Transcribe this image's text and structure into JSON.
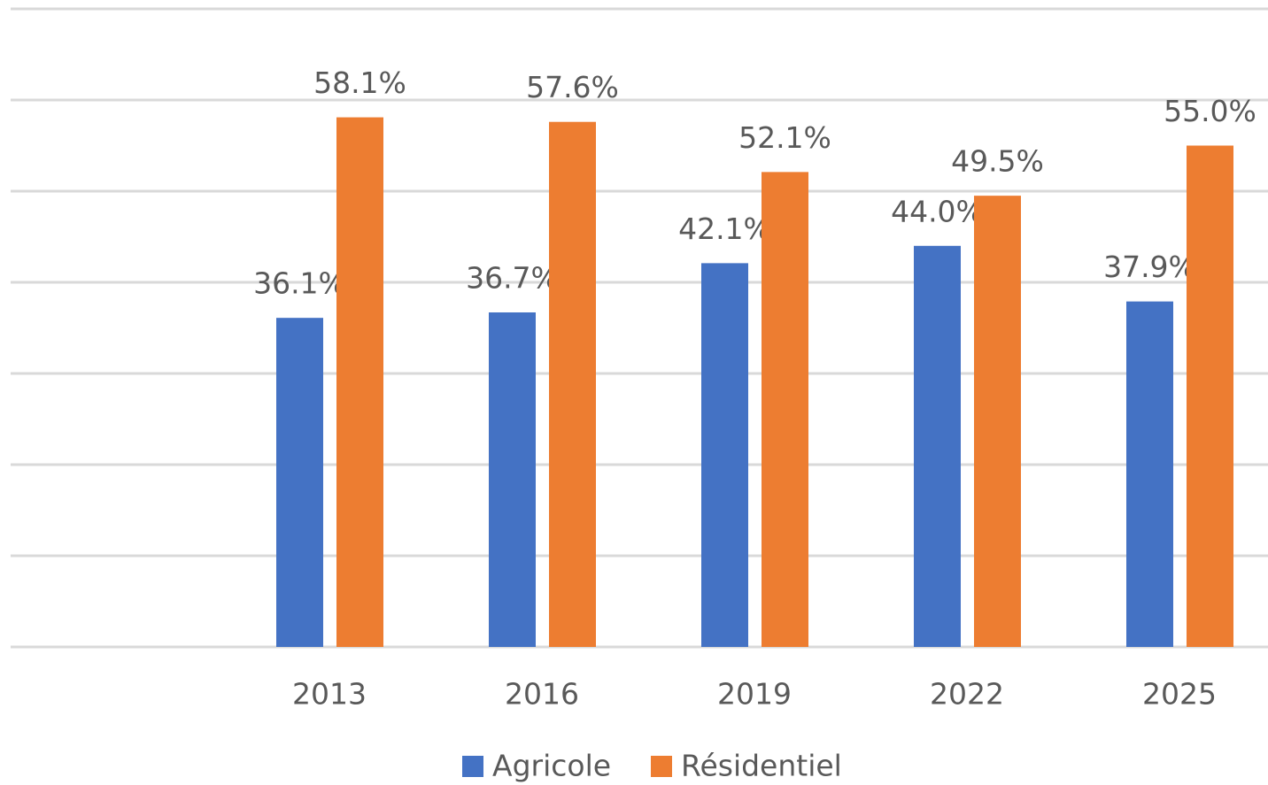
{
  "chart_data": {
    "type": "bar",
    "categories": [
      null,
      "2013",
      "2016",
      "2019",
      "2022",
      "2025"
    ],
    "series": [
      {
        "name": "Agricole",
        "color": "#4472c4",
        "values": [
          null,
          36.1,
          36.7,
          42.1,
          44.0,
          37.9
        ],
        "value_labels": [
          null,
          "36.1%",
          "36.7%",
          "42.1%",
          "44.0%",
          "37.9%"
        ]
      },
      {
        "name": "Résidentiel",
        "color": "#ed7d31",
        "values": [
          null,
          58.1,
          57.6,
          52.1,
          49.5,
          55.0
        ],
        "value_labels": [
          null,
          "58.1%",
          "57.6%",
          "52.1%",
          "49.5%",
          "55.0%"
        ]
      }
    ],
    "ylim": [
      0,
      70
    ],
    "yticks": [
      0,
      10,
      20,
      30,
      40,
      50,
      60,
      70
    ],
    "grid": true,
    "legend": "bottom"
  }
}
